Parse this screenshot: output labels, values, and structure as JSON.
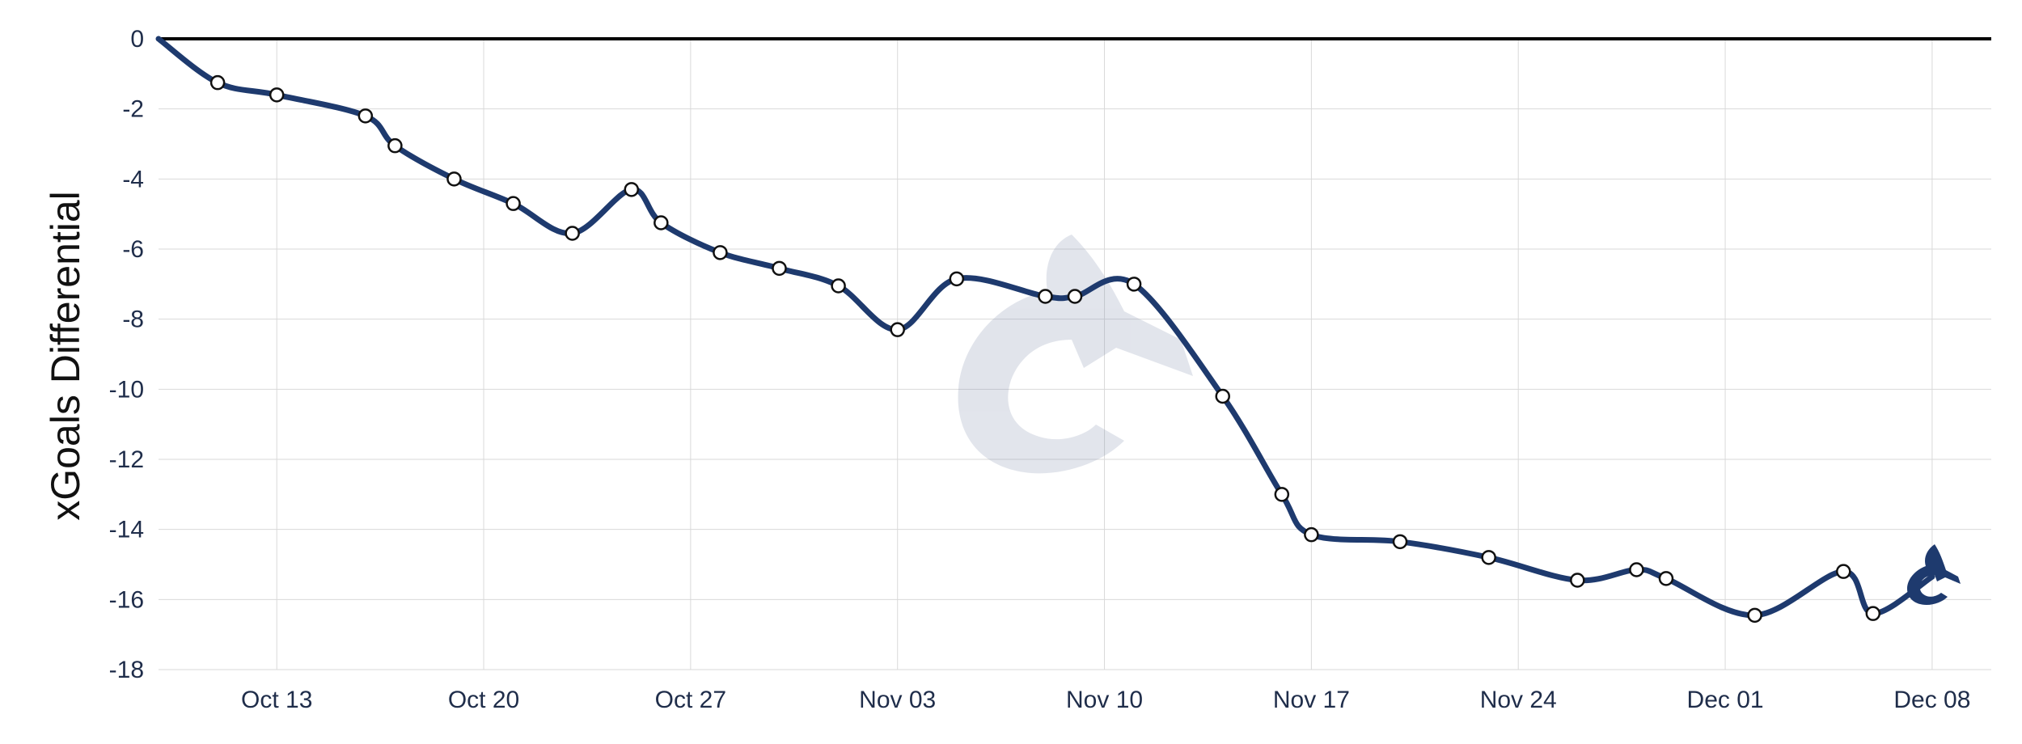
{
  "chart_data": {
    "type": "line",
    "title": "",
    "xlabel": "",
    "ylabel": "xGoals Differential",
    "x_ticks": [
      "Oct 13",
      "Oct 20",
      "Oct 27",
      "Nov 03",
      "Nov 10",
      "Nov 17",
      "Nov 24",
      "Dec 01",
      "Dec 08"
    ],
    "ylim": [
      -18,
      0
    ],
    "y_ticks": [
      0,
      -2,
      -4,
      -6,
      -8,
      -10,
      -12,
      -14,
      -16,
      -18
    ],
    "xlim": [
      "2024-10-09",
      "2024-12-10"
    ],
    "grid": true,
    "line_color": "#1e3a6e",
    "logo": "Vancouver Canucks orca logo watermark",
    "series": [
      {
        "x": [
          "2024-10-09",
          "2024-10-11",
          "2024-10-13",
          "2024-10-16",
          "2024-10-17",
          "2024-10-19",
          "2024-10-21",
          "2024-10-23",
          "2024-10-25",
          "2024-10-26",
          "2024-10-28",
          "2024-10-30",
          "2024-11-01",
          "2024-11-03",
          "2024-11-05",
          "2024-11-08",
          "2024-11-09",
          "2024-11-11",
          "2024-11-14",
          "2024-11-16",
          "2024-11-17",
          "2024-11-20",
          "2024-11-23",
          "2024-11-26",
          "2024-11-28",
          "2024-11-29",
          "2024-12-02",
          "2024-12-05",
          "2024-12-06",
          "2024-12-08"
        ],
        "values": [
          0.0,
          -1.25,
          -1.6,
          -2.2,
          -3.05,
          -4.0,
          -4.7,
          -5.55,
          -4.3,
          -5.25,
          -6.1,
          -6.55,
          -7.05,
          -8.3,
          -6.85,
          -7.35,
          -7.35,
          -7.0,
          -10.2,
          -13.0,
          -14.15,
          -14.35,
          -14.8,
          -15.45,
          -15.15,
          -15.4,
          -16.45,
          -15.2,
          -16.4,
          -15.35
        ],
        "markers": [
          false,
          true,
          true,
          true,
          true,
          true,
          true,
          true,
          true,
          true,
          true,
          true,
          true,
          true,
          true,
          true,
          true,
          true,
          true,
          true,
          true,
          true,
          true,
          true,
          true,
          true,
          true,
          true,
          true,
          false
        ]
      }
    ]
  }
}
